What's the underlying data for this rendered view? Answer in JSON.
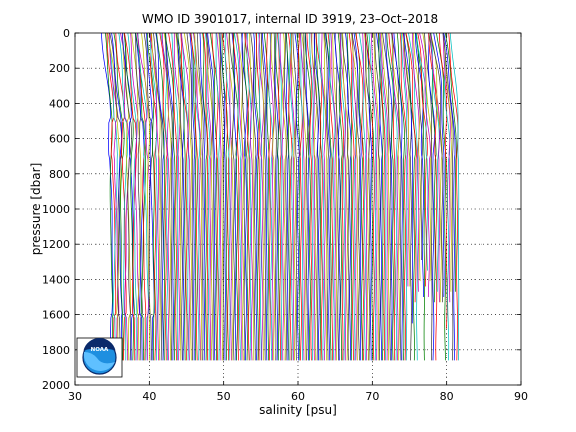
{
  "chart_data": {
    "type": "line",
    "title": "WMO ID 3901017, internal ID 3919, 23–Oct–2018",
    "xlabel": "salinity [psu]",
    "ylabel": "pressure [dbar]",
    "xlim": [
      30,
      90
    ],
    "ylim": [
      2000,
      0
    ],
    "y_axis_inverted": true,
    "x_ticks": [
      30,
      40,
      50,
      60,
      70,
      80,
      90
    ],
    "y_ticks": [
      0,
      200,
      400,
      600,
      800,
      1000,
      1200,
      1400,
      1600,
      1800,
      2000
    ],
    "grid": "dotted",
    "profile_offset_psu": 0.2,
    "profile_pressure_range": [
      0,
      1860
    ],
    "profile_first_salinity_at_depth": 34.8,
    "profile_last_salinity_at_depth": 81.6,
    "profile_colors": [
      "#0000ff",
      "#008000",
      "#ff0000",
      "#00bfbf",
      "#bf00bf",
      "#bfbf00",
      "#404040"
    ],
    "logo": {
      "name": "noaa-logo",
      "text": "NOAA"
    }
  }
}
